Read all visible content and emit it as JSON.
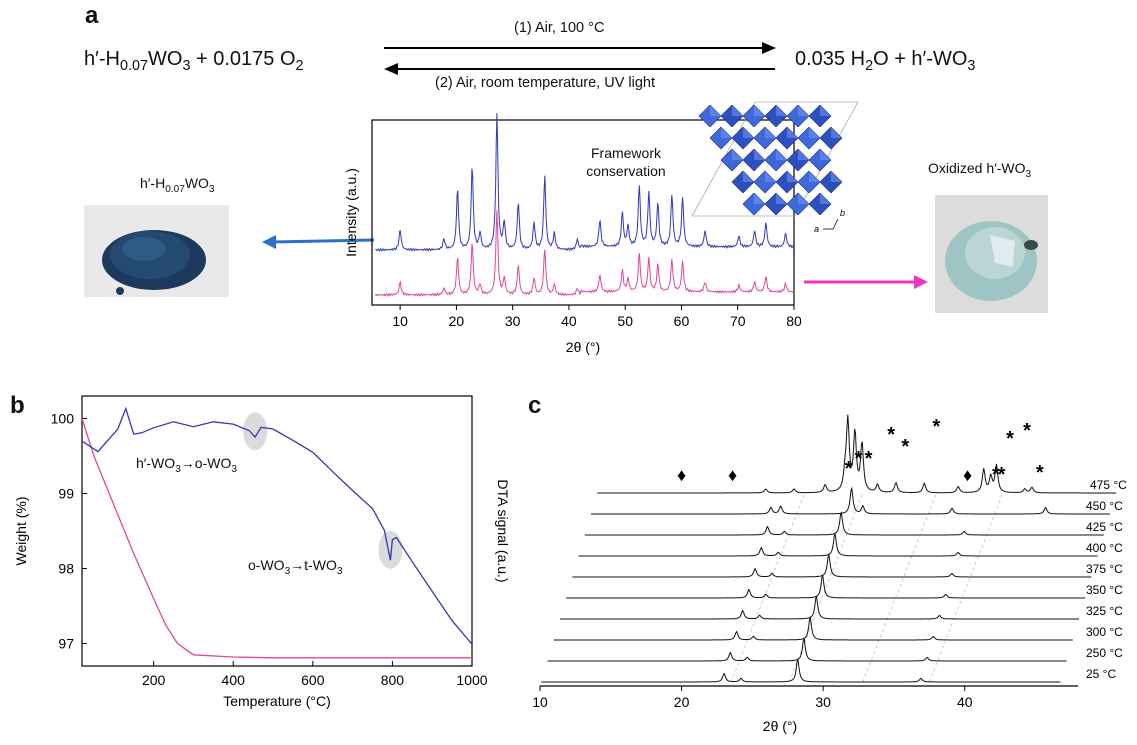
{
  "panel_a": {
    "label": "a",
    "left_compound": "h′-H0.07WO3",
    "reactants": "h′-H0.07WO3 + 0.0175 O2",
    "products": "0.035 H2O + h′-WO3",
    "forward_condition": "(1) Air, 100 °C",
    "reverse_condition": "(2) Air, room temperature, UV light",
    "framework_text": "Framework conservation",
    "right_compound": "Oxidized h′-WO3",
    "axis_a": "a",
    "axis_b": "b"
  },
  "colors": {
    "blue": "#3238b8",
    "magenta": "#e0479a",
    "arrow_blue": "#2a72c8",
    "arrow_magenta": "#f233c3",
    "powder_dark": "#1d3a5c",
    "powder_light": "#9fc4c4"
  },
  "chart_data": [
    {
      "type": "line",
      "panel": "a",
      "xlabel": "2θ (°)",
      "ylabel": "Intensity (a.u.)",
      "xlim": [
        5,
        80
      ],
      "x_ticks": [
        10,
        20,
        30,
        40,
        50,
        60,
        70,
        80
      ],
      "peaks": [
        [
          10,
          0.15
        ],
        [
          17.8,
          0.08
        ],
        [
          20.2,
          0.45
        ],
        [
          22.8,
          0.62
        ],
        [
          24.2,
          0.12
        ],
        [
          27.2,
          1.0
        ],
        [
          28.5,
          0.2
        ],
        [
          31,
          0.35
        ],
        [
          33.8,
          0.2
        ],
        [
          35.7,
          0.55
        ],
        [
          37.4,
          0.12
        ],
        [
          41.5,
          0.08
        ],
        [
          45.5,
          0.2
        ],
        [
          49.5,
          0.25
        ],
        [
          50.5,
          0.15
        ],
        [
          52.5,
          0.45
        ],
        [
          54.2,
          0.4
        ],
        [
          55.8,
          0.32
        ],
        [
          58.3,
          0.38
        ],
        [
          60.2,
          0.36
        ],
        [
          64.2,
          0.12
        ],
        [
          70.2,
          0.08
        ],
        [
          73,
          0.12
        ],
        [
          75,
          0.18
        ],
        [
          78.5,
          0.1
        ]
      ],
      "series": [
        {
          "name": "h′-H0.07WO3",
          "color": "#3238b8",
          "scale": 1.0
        },
        {
          "name": "Oxidized h′-WO3",
          "color": "#e0479a",
          "scale": 0.6
        }
      ]
    },
    {
      "type": "line",
      "panel": "b",
      "xlabel": "Temperature (°C)",
      "ylabel_left": "Weight (%)",
      "ylabel_right": "DTA signal (a.u.)",
      "xlim": [
        20,
        1000
      ],
      "ylim": [
        96.7,
        100.3
      ],
      "x_ticks": [
        200,
        400,
        600,
        800,
        1000
      ],
      "y_ticks": [
        97,
        98,
        99,
        100
      ],
      "series": [
        {
          "name": "Weight (%)",
          "color": "#e0479a",
          "x": [
            20,
            50,
            100,
            150,
            200,
            230,
            260,
            300,
            400,
            500,
            600,
            800,
            1000
          ],
          "y": [
            100.0,
            99.5,
            98.85,
            98.2,
            97.6,
            97.25,
            97.0,
            96.85,
            96.82,
            96.81,
            96.81,
            96.81,
            96.81
          ]
        },
        {
          "name": "DTA signal (a.u.)",
          "color": "#3238b8",
          "x": [
            20,
            60,
            110,
            130,
            150,
            170,
            200,
            250,
            300,
            350,
            400,
            440,
            455,
            470,
            500,
            550,
            600,
            650,
            700,
            750,
            780,
            795,
            800,
            810,
            850,
            900,
            950,
            1000
          ],
          "y": [
            99.7,
            99.55,
            99.85,
            100.13,
            99.8,
            99.82,
            99.88,
            99.95,
            99.88,
            99.95,
            99.93,
            99.85,
            99.76,
            99.88,
            99.85,
            99.7,
            99.55,
            99.3,
            99.05,
            98.8,
            98.5,
            98.1,
            98.38,
            98.42,
            98.1,
            97.7,
            97.3,
            96.98
          ]
        }
      ],
      "annotations": [
        "h′-WO3→o-WO3",
        "o-WO3→t-WO3"
      ]
    },
    {
      "type": "line",
      "panel": "c",
      "xlabel": "2θ (°)",
      "xlim": [
        10,
        48
      ],
      "x_ticks": [
        10,
        20,
        30,
        40
      ],
      "series": [
        {
          "name": "25 °C",
          "peaks": [
            [
              23.0,
              0.35
            ],
            [
              24.2,
              0.15
            ],
            [
              28.2,
              0.95
            ],
            [
              36.9,
              0.15
            ]
          ]
        },
        {
          "name": "250 °C",
          "peaks": [
            [
              23.0,
              0.35
            ],
            [
              24.2,
              0.15
            ],
            [
              28.2,
              0.95
            ],
            [
              36.9,
              0.15
            ]
          ]
        },
        {
          "name": "300 °C",
          "peaks": [
            [
              23.0,
              0.35
            ],
            [
              24.2,
              0.15
            ],
            [
              28.2,
              0.95
            ],
            [
              36.9,
              0.15
            ]
          ]
        },
        {
          "name": "325 °C",
          "peaks": [
            [
              23.0,
              0.35
            ],
            [
              24.2,
              0.15
            ],
            [
              28.2,
              0.95
            ],
            [
              36.9,
              0.15
            ]
          ]
        },
        {
          "name": "350 °C",
          "peaks": [
            [
              23.0,
              0.35
            ],
            [
              24.2,
              0.15
            ],
            [
              28.2,
              0.95
            ],
            [
              36.9,
              0.15
            ]
          ]
        },
        {
          "name": "375 °C",
          "peaks": [
            [
              23.0,
              0.35
            ],
            [
              24.2,
              0.15
            ],
            [
              28.2,
              0.95
            ],
            [
              36.9,
              0.15
            ]
          ]
        },
        {
          "name": "400 °C",
          "peaks": [
            [
              23.0,
              0.35
            ],
            [
              24.2,
              0.15
            ],
            [
              28.2,
              0.95
            ],
            [
              36.9,
              0.15
            ]
          ]
        },
        {
          "name": "425 °C",
          "peaks": [
            [
              23.0,
              0.35
            ],
            [
              24.2,
              0.15
            ],
            [
              28.2,
              0.95
            ],
            [
              36.9,
              0.15
            ]
          ]
        },
        {
          "name": "450 °C",
          "peaks": [
            [
              22.8,
              0.25
            ],
            [
              23.5,
              0.3
            ],
            [
              28.5,
              1.0
            ],
            [
              29.3,
              0.3
            ],
            [
              35.6,
              0.22
            ],
            [
              42.2,
              0.25
            ]
          ]
        },
        {
          "name": "475 °C",
          "peaks": [
            [
              22.0,
              0.05
            ],
            [
              24.0,
              0.05
            ],
            [
              26.2,
              0.1
            ],
            [
              27.6,
              0.2
            ],
            [
              27.8,
              0.9
            ],
            [
              28.3,
              0.75
            ],
            [
              28.8,
              0.62
            ],
            [
              29.9,
              0.1
            ],
            [
              31.2,
              0.13
            ],
            [
              33.2,
              0.12
            ],
            [
              35.6,
              0.08
            ],
            [
              37.4,
              0.3
            ],
            [
              37.9,
              0.2
            ],
            [
              38.3,
              0.35
            ],
            [
              40.3,
              0.05
            ],
            [
              40.8,
              0.07
            ]
          ]
        }
      ],
      "markers": [
        {
          "symbol": "♦",
          "x": 20.0
        },
        {
          "symbol": "♦",
          "x": 23.6
        },
        {
          "symbol": "♦",
          "x": 40.2
        },
        {
          "symbol": "*",
          "x": 31.8
        },
        {
          "symbol": "*",
          "x": 32.5
        },
        {
          "symbol": "*",
          "x": 33.2
        },
        {
          "symbol": "*",
          "x": 34.8
        },
        {
          "symbol": "*",
          "x": 35.8
        },
        {
          "symbol": "*",
          "x": 38.0
        },
        {
          "symbol": "*",
          "x": 42.2
        },
        {
          "symbol": "*",
          "x": 42.6
        },
        {
          "symbol": "*",
          "x": 43.2
        },
        {
          "symbol": "*",
          "x": 44.4
        },
        {
          "symbol": "*",
          "x": 45.3
        }
      ]
    }
  ]
}
